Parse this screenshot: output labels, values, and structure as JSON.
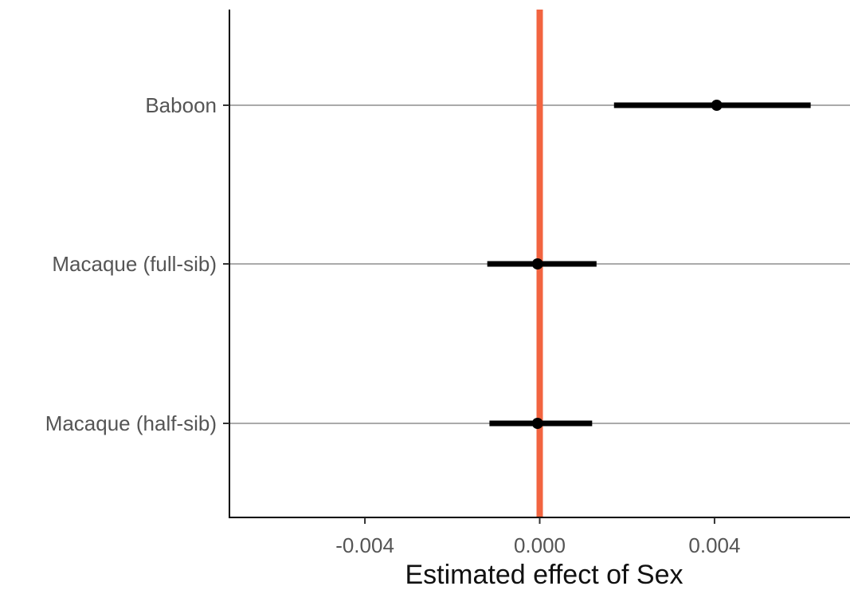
{
  "chart_data": {
    "type": "dot-interval",
    "orientation": "horizontal",
    "categories": [
      "Baboon",
      "Macaque (full-sib)",
      "Macaque (half-sib)"
    ],
    "estimates": [
      0.00405,
      -5e-05,
      -5e-05
    ],
    "ci_low": [
      0.0017,
      -0.0012,
      -0.00115
    ],
    "ci_high": [
      0.0062,
      0.0013,
      0.0012
    ],
    "xlabel": "Estimated effect of Sex",
    "ylabel": "",
    "title": "",
    "xlim": [
      -0.0071,
      0.0071
    ],
    "xticks": [
      -0.004,
      0.0,
      0.004
    ],
    "xtick_labels": [
      "-0.004",
      "0.000",
      "0.004"
    ],
    "reference_line": {
      "x": 0.0,
      "color": "#F26440"
    },
    "gridlines": "horizontal",
    "legend": "none",
    "colors": {
      "interval": "#000000",
      "point": "#000000",
      "grid": "#AAAAAA",
      "axis": "#000000"
    }
  }
}
